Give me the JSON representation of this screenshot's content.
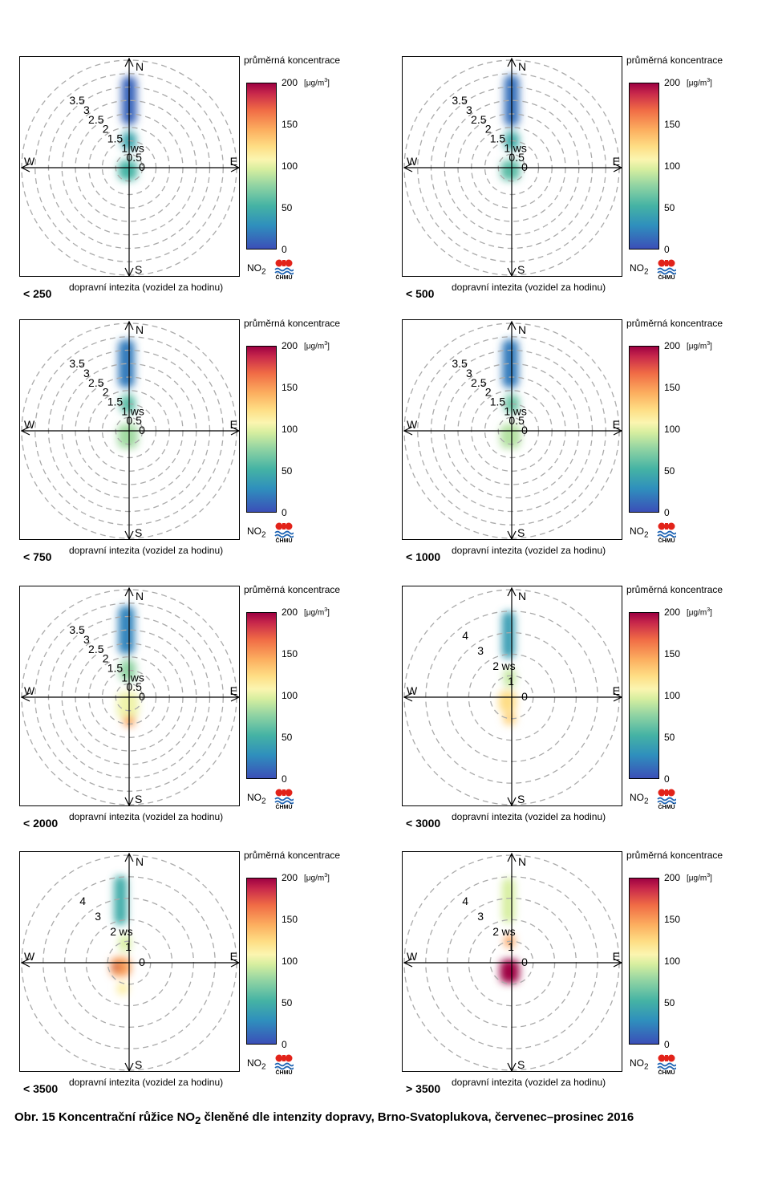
{
  "chart_data": {
    "type": "polar-rose",
    "legend_title": "průměrná koncentrace",
    "unit_prefix": "[μg/m",
    "unit_suffix": "]",
    "unit_exponent": "3",
    "colorbar_ticks": [
      "200",
      "150",
      "100",
      "50",
      "0"
    ],
    "colorbar_range": [
      0,
      200
    ],
    "pollutant_main": "NO",
    "pollutant_sub": "2",
    "traffic_label": "dopravní intezita (vozidel za hodinu)",
    "directions": [
      "N",
      "E",
      "S",
      "W"
    ],
    "panels": [
      {
        "label": "< 250",
        "rings": [
          "0",
          "0.5",
          "1",
          "1.5",
          "2",
          "2.5",
          "3",
          "3.5"
        ],
        "ws_ring": "1",
        "max_ws": 4.0,
        "lobes": [
          {
            "x": 0.0,
            "y": 2.5,
            "w": 0.55,
            "h": 1.8,
            "value": 10
          },
          {
            "x": 0.0,
            "y": 1.0,
            "w": 0.55,
            "h": 0.7,
            "value": 45
          },
          {
            "x": -0.05,
            "y": -0.1,
            "w": 0.7,
            "h": 0.75,
            "value": 55
          }
        ]
      },
      {
        "label": "< 500",
        "rings": [
          "0",
          "0.5",
          "1",
          "1.5",
          "2",
          "2.5",
          "3",
          "3.5"
        ],
        "ws_ring": "1",
        "max_ws": 4.0,
        "lobes": [
          {
            "x": 0.0,
            "y": 2.5,
            "w": 0.55,
            "h": 1.9,
            "value": 15
          },
          {
            "x": 0.0,
            "y": 1.0,
            "w": 0.55,
            "h": 0.7,
            "value": 50
          },
          {
            "x": -0.05,
            "y": -0.1,
            "w": 0.7,
            "h": 0.75,
            "value": 60
          }
        ]
      },
      {
        "label": "< 750",
        "rings": [
          "0",
          "0.5",
          "1",
          "1.5",
          "2",
          "2.5",
          "3",
          "3.5"
        ],
        "ws_ring": "1",
        "max_ws": 4.0,
        "lobes": [
          {
            "x": -0.1,
            "y": 2.5,
            "w": 0.6,
            "h": 1.8,
            "value": 20
          },
          {
            "x": -0.05,
            "y": 1.0,
            "w": 0.55,
            "h": 0.7,
            "value": 60
          },
          {
            "x": -0.05,
            "y": -0.2,
            "w": 0.75,
            "h": 0.9,
            "value": 80
          }
        ]
      },
      {
        "label": "< 1000",
        "rings": [
          "0",
          "0.5",
          "1",
          "1.5",
          "2",
          "2.5",
          "3",
          "3.5"
        ],
        "ws_ring": "1",
        "max_ws": 4.0,
        "lobes": [
          {
            "x": -0.05,
            "y": 2.5,
            "w": 0.6,
            "h": 1.8,
            "value": 20
          },
          {
            "x": 0.0,
            "y": 1.0,
            "w": 0.55,
            "h": 0.7,
            "value": 65
          },
          {
            "x": -0.05,
            "y": -0.2,
            "w": 0.75,
            "h": 0.9,
            "value": 85
          }
        ]
      },
      {
        "label": "< 2000",
        "rings": [
          "0",
          "0.5",
          "1",
          "1.5",
          "2",
          "2.5",
          "3",
          "3.5"
        ],
        "ws_ring": "1",
        "max_ws": 4.0,
        "lobes": [
          {
            "x": -0.1,
            "y": 2.5,
            "w": 0.6,
            "h": 1.8,
            "value": 25
          },
          {
            "x": -0.05,
            "y": 1.0,
            "w": 0.6,
            "h": 0.8,
            "value": 75
          },
          {
            "x": -0.05,
            "y": -0.3,
            "w": 0.8,
            "h": 1.0,
            "value": 105
          },
          {
            "x": 0.0,
            "y": -0.9,
            "w": 0.45,
            "h": 0.4,
            "value": 150
          }
        ]
      },
      {
        "label": "< 3000",
        "rings": [
          "0",
          "1",
          "2",
          "3",
          "4"
        ],
        "ws_ring": "2",
        "max_ws": 5.0,
        "lobes": [
          {
            "x": -0.15,
            "y": 2.9,
            "w": 0.6,
            "h": 2.2,
            "value": 40
          },
          {
            "x": -0.1,
            "y": 0.9,
            "w": 0.55,
            "h": 0.9,
            "value": 90
          },
          {
            "x": -0.2,
            "y": -0.2,
            "w": 0.8,
            "h": 1.0,
            "value": 125
          },
          {
            "x": -0.1,
            "y": -1.0,
            "w": 0.6,
            "h": 0.6,
            "value": 130
          }
        ]
      },
      {
        "label": "< 3500",
        "rings": [
          "0",
          "1",
          "2",
          "3",
          "4"
        ],
        "ws_ring": "2",
        "max_ws": 5.0,
        "lobes": [
          {
            "x": -0.4,
            "y": 2.9,
            "w": 0.6,
            "h": 2.3,
            "value": 50
          },
          {
            "x": -0.2,
            "y": 0.9,
            "w": 0.55,
            "h": 0.8,
            "value": 95
          },
          {
            "x": -0.4,
            "y": -0.2,
            "w": 0.95,
            "h": 0.9,
            "value": 150
          },
          {
            "x": -0.3,
            "y": -1.2,
            "w": 0.55,
            "h": 0.6,
            "value": 115
          },
          {
            "x": -0.6,
            "y": -0.2,
            "w": 0.35,
            "h": 0.3,
            "value": 195
          }
        ]
      },
      {
        "label": "> 3500",
        "rings": [
          "0",
          "1",
          "2",
          "3",
          "4"
        ],
        "ws_ring": "2",
        "max_ws": 5.0,
        "lobes": [
          {
            "x": -0.15,
            "y": 2.9,
            "w": 0.6,
            "h": 2.1,
            "value": 95
          },
          {
            "x": -0.1,
            "y": 1.0,
            "w": 0.5,
            "h": 0.6,
            "value": 150
          },
          {
            "x": -0.1,
            "y": -0.4,
            "w": 0.9,
            "h": 1.1,
            "value": 200
          }
        ]
      }
    ]
  },
  "caption": {
    "prefix": "Obr. 15  Koncentrační růžice NO",
    "sub": "2",
    "suffix": " členěné dle intenzity dopravy, Brno-Svatoplukova, červenec–prosinec 2016"
  },
  "logo_text": "ČHMÚ"
}
